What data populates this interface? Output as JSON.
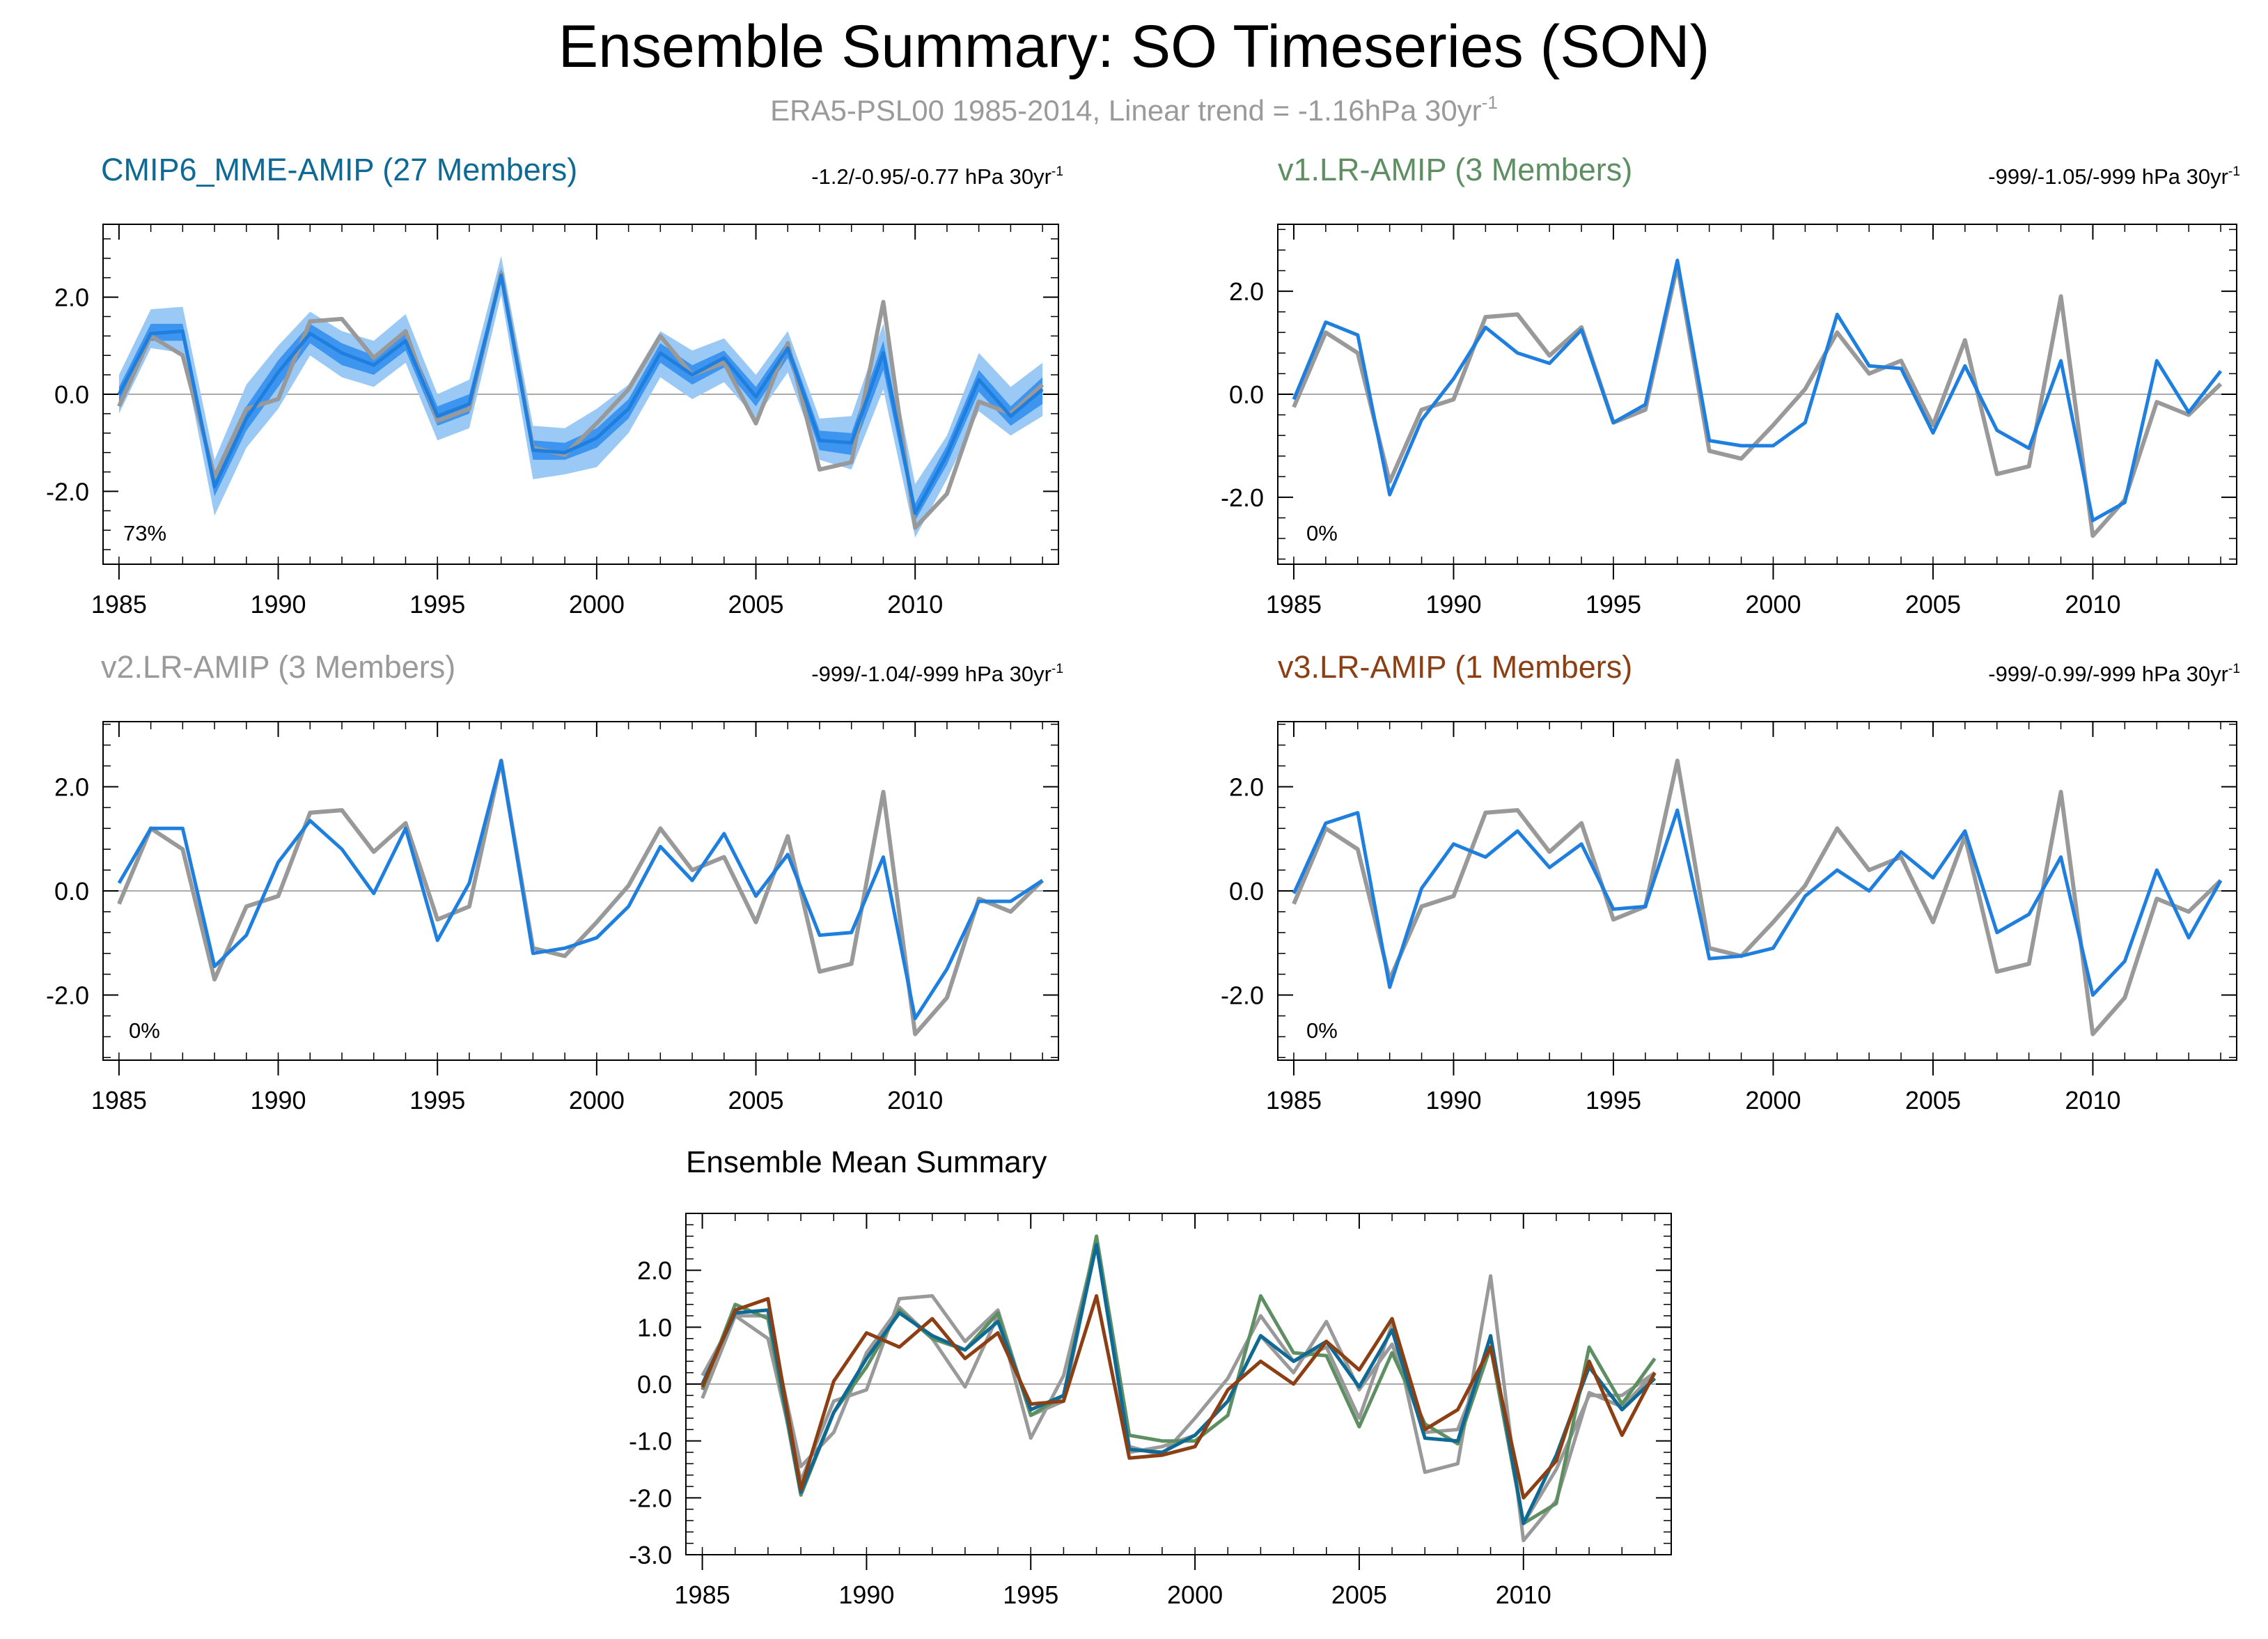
{
  "title": "Ensemble Summary: SO Timeseries (SON)",
  "subtitle": {
    "text": "ERA5-PSL00 1985-2014, Linear trend = -1.16hPa 30yr",
    "exponent": "-1"
  },
  "colors": {
    "obs": "#999999",
    "model_line": "#1e7fdf",
    "spread_inner": "#3d95ef",
    "spread_outer": "#9bc9f6",
    "cmip6_title": "#0e6a94",
    "v1_title": "#5d8f62",
    "v2_title": "#9a9a9a",
    "v3_title": "#8c3f12"
  },
  "chart_data": [
    {
      "id": "cmip6",
      "type": "line",
      "title": "CMIP6_MME-AMIP (27 Members)",
      "trend_label": "-1.2/-0.95/-0.77 hPa 30yr",
      "trend_exponent": "-1",
      "percent_label": "73%",
      "ylim": [
        -3.5,
        3.5
      ],
      "yticks": [
        -2,
        0,
        2
      ],
      "ytick_labels": [
        "-2.0",
        "0.0",
        "2.0"
      ],
      "xlim": [
        1984.5,
        2014.5
      ],
      "xticks": [
        1985,
        1990,
        1995,
        2000,
        2005,
        2010
      ],
      "x": [
        1985,
        1986,
        1987,
        1988,
        1989,
        1990,
        1991,
        1992,
        1993,
        1994,
        1995,
        1996,
        1997,
        1998,
        1999,
        2000,
        2001,
        2002,
        2003,
        2004,
        2005,
        2006,
        2007,
        2008,
        2009,
        2010,
        2011,
        2012,
        2013,
        2014
      ],
      "series": [
        {
          "name": "ERA5-PSL00",
          "values": [
            -0.25,
            1.2,
            0.8,
            -1.7,
            -0.3,
            -0.1,
            1.5,
            1.55,
            0.75,
            1.3,
            -0.55,
            -0.3,
            2.5,
            -1.1,
            -1.25,
            -0.6,
            0.1,
            1.2,
            0.4,
            0.65,
            -0.6,
            1.05,
            -1.55,
            -1.4,
            1.9,
            -2.75,
            -2.05,
            -0.15,
            -0.4,
            0.2
          ]
        },
        {
          "name": "CMIP6_MME-AMIP",
          "values": [
            0.0,
            1.25,
            1.3,
            -1.9,
            -0.5,
            0.45,
            1.25,
            0.85,
            0.6,
            1.1,
            -0.45,
            -0.2,
            2.45,
            -1.15,
            -1.2,
            -0.9,
            -0.3,
            0.85,
            0.4,
            0.75,
            -0.05,
            0.95,
            -0.95,
            -1.0,
            0.85,
            -2.45,
            -1.25,
            0.3,
            -0.45,
            0.1
          ],
          "p10": [
            -0.4,
            0.95,
            0.85,
            -2.5,
            -1.1,
            -0.3,
            0.8,
            0.35,
            0.15,
            0.65,
            -0.95,
            -0.7,
            2.05,
            -1.75,
            -1.65,
            -1.5,
            -0.8,
            0.35,
            -0.1,
            0.25,
            -0.5,
            0.45,
            -1.35,
            -1.55,
            0.1,
            -2.95,
            -1.75,
            -0.35,
            -0.85,
            -0.45
          ],
          "p90": [
            0.4,
            1.75,
            1.8,
            -1.35,
            0.2,
            1.0,
            1.7,
            1.3,
            1.1,
            1.65,
            0.0,
            0.3,
            2.85,
            -0.65,
            -0.7,
            -0.3,
            0.2,
            1.3,
            0.9,
            1.15,
            0.4,
            1.3,
            -0.5,
            -0.45,
            1.45,
            -1.85,
            -0.85,
            0.85,
            0.15,
            0.65
          ],
          "p25": [
            -0.15,
            1.1,
            1.1,
            -2.1,
            -0.75,
            0.15,
            1.05,
            0.6,
            0.4,
            0.9,
            -0.65,
            -0.4,
            2.3,
            -1.35,
            -1.35,
            -1.1,
            -0.5,
            0.65,
            0.2,
            0.55,
            -0.25,
            0.75,
            -1.15,
            -1.25,
            0.5,
            -2.6,
            -1.45,
            0.05,
            -0.65,
            -0.2
          ],
          "p75": [
            0.15,
            1.45,
            1.45,
            -1.7,
            -0.25,
            0.7,
            1.45,
            1.05,
            0.8,
            1.3,
            -0.25,
            0.0,
            2.6,
            -0.95,
            -1.0,
            -0.7,
            -0.1,
            1.05,
            0.6,
            0.9,
            0.15,
            1.1,
            -0.75,
            -0.8,
            1.1,
            -2.25,
            -1.05,
            0.5,
            -0.25,
            0.35
          ]
        }
      ]
    },
    {
      "id": "v1",
      "type": "line",
      "title": "v1.LR-AMIP (3 Members)",
      "trend_label": "-999/-1.05/-999 hPa 30yr",
      "trend_exponent": "-1",
      "percent_label": "0%",
      "ylim": [
        -3.3,
        3.3
      ],
      "yticks": [
        -2,
        0,
        2
      ],
      "ytick_labels": [
        "-2.0",
        "0.0",
        "2.0"
      ],
      "xlim": [
        1984.5,
        2014.5
      ],
      "xticks": [
        1985,
        1990,
        1995,
        2000,
        2005,
        2010
      ],
      "x": [
        1985,
        1986,
        1987,
        1988,
        1989,
        1990,
        1991,
        1992,
        1993,
        1994,
        1995,
        1996,
        1997,
        1998,
        1999,
        2000,
        2001,
        2002,
        2003,
        2004,
        2005,
        2006,
        2007,
        2008,
        2009,
        2010,
        2011,
        2012,
        2013,
        2014
      ],
      "series": [
        {
          "name": "ERA5-PSL00",
          "values": [
            -0.25,
            1.2,
            0.8,
            -1.7,
            -0.3,
            -0.1,
            1.5,
            1.55,
            0.75,
            1.3,
            -0.55,
            -0.3,
            2.5,
            -1.1,
            -1.25,
            -0.6,
            0.1,
            1.2,
            0.4,
            0.65,
            -0.6,
            1.05,
            -1.55,
            -1.4,
            1.9,
            -2.75,
            -2.05,
            -0.15,
            -0.4,
            0.2
          ]
        },
        {
          "name": "v1.LR-AMIP",
          "values": [
            -0.1,
            1.4,
            1.15,
            -1.95,
            -0.5,
            0.3,
            1.3,
            0.8,
            0.6,
            1.25,
            -0.55,
            -0.2,
            2.6,
            -0.9,
            -1.0,
            -1.0,
            -0.55,
            1.55,
            0.55,
            0.5,
            -0.75,
            0.55,
            -0.7,
            -1.05,
            0.65,
            -2.45,
            -2.1,
            0.65,
            -0.35,
            0.45
          ]
        }
      ]
    },
    {
      "id": "v2",
      "type": "line",
      "title": "v2.LR-AMIP (3 Members)",
      "trend_label": "-999/-1.04/-999 hPa 30yr",
      "trend_exponent": "-1",
      "percent_label": "0%",
      "ylim": [
        -3.25,
        3.25
      ],
      "yticks": [
        -2,
        0,
        2
      ],
      "ytick_labels": [
        "-2.0",
        "0.0",
        "2.0"
      ],
      "xlim": [
        1984.5,
        2014.5
      ],
      "xticks": [
        1985,
        1990,
        1995,
        2000,
        2005,
        2010
      ],
      "x": [
        1985,
        1986,
        1987,
        1988,
        1989,
        1990,
        1991,
        1992,
        1993,
        1994,
        1995,
        1996,
        1997,
        1998,
        1999,
        2000,
        2001,
        2002,
        2003,
        2004,
        2005,
        2006,
        2007,
        2008,
        2009,
        2010,
        2011,
        2012,
        2013,
        2014
      ],
      "series": [
        {
          "name": "ERA5-PSL00",
          "values": [
            -0.25,
            1.2,
            0.8,
            -1.7,
            -0.3,
            -0.1,
            1.5,
            1.55,
            0.75,
            1.3,
            -0.55,
            -0.3,
            2.5,
            -1.1,
            -1.25,
            -0.6,
            0.1,
            1.2,
            0.4,
            0.65,
            -0.6,
            1.05,
            -1.55,
            -1.4,
            1.9,
            -2.75,
            -2.05,
            -0.15,
            -0.4,
            0.2
          ]
        },
        {
          "name": "v2.LR-AMIP",
          "values": [
            0.15,
            1.2,
            1.2,
            -1.45,
            -0.85,
            0.55,
            1.35,
            0.8,
            -0.05,
            1.2,
            -0.95,
            0.15,
            2.5,
            -1.2,
            -1.1,
            -0.9,
            -0.3,
            0.85,
            0.2,
            1.1,
            -0.1,
            0.7,
            -0.85,
            -0.8,
            0.65,
            -2.45,
            -1.5,
            -0.2,
            -0.2,
            0.2
          ]
        }
      ]
    },
    {
      "id": "v3",
      "type": "line",
      "title": "v3.LR-AMIP (1 Members)",
      "trend_label": "-999/-0.99/-999 hPa 30yr",
      "trend_exponent": "-1",
      "percent_label": "0%",
      "ylim": [
        -3.25,
        3.25
      ],
      "yticks": [
        -2,
        0,
        2
      ],
      "ytick_labels": [
        "-2.0",
        "0.0",
        "2.0"
      ],
      "xlim": [
        1984.5,
        2014.5
      ],
      "xticks": [
        1985,
        1990,
        1995,
        2000,
        2005,
        2010
      ],
      "x": [
        1985,
        1986,
        1987,
        1988,
        1989,
        1990,
        1991,
        1992,
        1993,
        1994,
        1995,
        1996,
        1997,
        1998,
        1999,
        2000,
        2001,
        2002,
        2003,
        2004,
        2005,
        2006,
        2007,
        2008,
        2009,
        2010,
        2011,
        2012,
        2013,
        2014
      ],
      "series": [
        {
          "name": "ERA5-PSL00",
          "values": [
            -0.25,
            1.2,
            0.8,
            -1.7,
            -0.3,
            -0.1,
            1.5,
            1.55,
            0.75,
            1.3,
            -0.55,
            -0.3,
            2.5,
            -1.1,
            -1.25,
            -0.6,
            0.1,
            1.2,
            0.4,
            0.65,
            -0.6,
            1.05,
            -1.55,
            -1.4,
            1.9,
            -2.75,
            -2.05,
            -0.15,
            -0.4,
            0.2
          ]
        },
        {
          "name": "v3.LR-AMIP",
          "values": [
            -0.05,
            1.3,
            1.5,
            -1.85,
            0.05,
            0.9,
            0.65,
            1.15,
            0.45,
            0.9,
            -0.35,
            -0.3,
            1.55,
            -1.3,
            -1.25,
            -1.1,
            -0.1,
            0.4,
            0.0,
            0.75,
            0.25,
            1.15,
            -0.8,
            -0.45,
            0.65,
            -2.0,
            -1.35,
            0.4,
            -0.9,
            0.2
          ]
        }
      ]
    },
    {
      "id": "mean",
      "type": "line",
      "title": "Ensemble Mean Summary",
      "ylim": [
        -3.0,
        3.0
      ],
      "yticks": [
        -3,
        -2,
        -1,
        0,
        1,
        2
      ],
      "ytick_labels": [
        "-3.0",
        "-2.0",
        "-1.0",
        "0.0",
        "1.0",
        "2.0"
      ],
      "xlim": [
        1984.5,
        2014.5
      ],
      "xticks": [
        1985,
        1990,
        1995,
        2000,
        2005,
        2010
      ],
      "x": [
        1985,
        1986,
        1987,
        1988,
        1989,
        1990,
        1991,
        1992,
        1993,
        1994,
        1995,
        1996,
        1997,
        1998,
        1999,
        2000,
        2001,
        2002,
        2003,
        2004,
        2005,
        2006,
        2007,
        2008,
        2009,
        2010,
        2011,
        2012,
        2013,
        2014
      ],
      "series": [
        {
          "name": "ERA5-PSL00",
          "values": [
            -0.25,
            1.2,
            0.8,
            -1.7,
            -0.3,
            -0.1,
            1.5,
            1.55,
            0.75,
            1.3,
            -0.55,
            -0.3,
            2.5,
            -1.1,
            -1.25,
            -0.6,
            0.1,
            1.2,
            0.4,
            0.65,
            -0.6,
            1.05,
            -1.55,
            -1.4,
            1.9,
            -2.75,
            -2.05,
            -0.15,
            -0.4,
            0.2
          ]
        },
        {
          "name": "v2.LR-AMIP",
          "values": [
            0.15,
            1.2,
            1.2,
            -1.45,
            -0.85,
            0.55,
            1.35,
            0.8,
            -0.05,
            1.2,
            -0.95,
            0.15,
            2.5,
            -1.2,
            -1.1,
            -0.9,
            -0.3,
            0.85,
            0.2,
            1.1,
            -0.1,
            0.7,
            -0.85,
            -0.8,
            0.65,
            -2.45,
            -1.5,
            -0.2,
            -0.2,
            0.2
          ]
        },
        {
          "name": "v1.LR-AMIP",
          "values": [
            -0.1,
            1.4,
            1.15,
            -1.95,
            -0.5,
            0.3,
            1.3,
            0.8,
            0.6,
            1.25,
            -0.55,
            -0.2,
            2.6,
            -0.9,
            -1.0,
            -1.0,
            -0.55,
            1.55,
            0.55,
            0.5,
            -0.75,
            0.55,
            -0.7,
            -1.05,
            0.65,
            -2.45,
            -2.1,
            0.65,
            -0.35,
            0.45
          ]
        },
        {
          "name": "CMIP6_MME-AMIP",
          "values": [
            0.0,
            1.25,
            1.3,
            -1.9,
            -0.5,
            0.45,
            1.25,
            0.85,
            0.6,
            1.1,
            -0.45,
            -0.2,
            2.45,
            -1.15,
            -1.2,
            -0.9,
            -0.3,
            0.85,
            0.4,
            0.75,
            -0.05,
            0.95,
            -0.95,
            -1.0,
            0.85,
            -2.45,
            -1.25,
            0.3,
            -0.45,
            0.1
          ]
        },
        {
          "name": "v3.LR-AMIP",
          "values": [
            -0.05,
            1.3,
            1.5,
            -1.85,
            0.05,
            0.9,
            0.65,
            1.15,
            0.45,
            0.9,
            -0.35,
            -0.3,
            1.55,
            -1.3,
            -1.25,
            -1.1,
            -0.1,
            0.4,
            0.0,
            0.75,
            0.25,
            1.15,
            -0.8,
            -0.45,
            0.65,
            -2.0,
            -1.35,
            0.4,
            -0.9,
            0.2
          ]
        }
      ]
    }
  ]
}
